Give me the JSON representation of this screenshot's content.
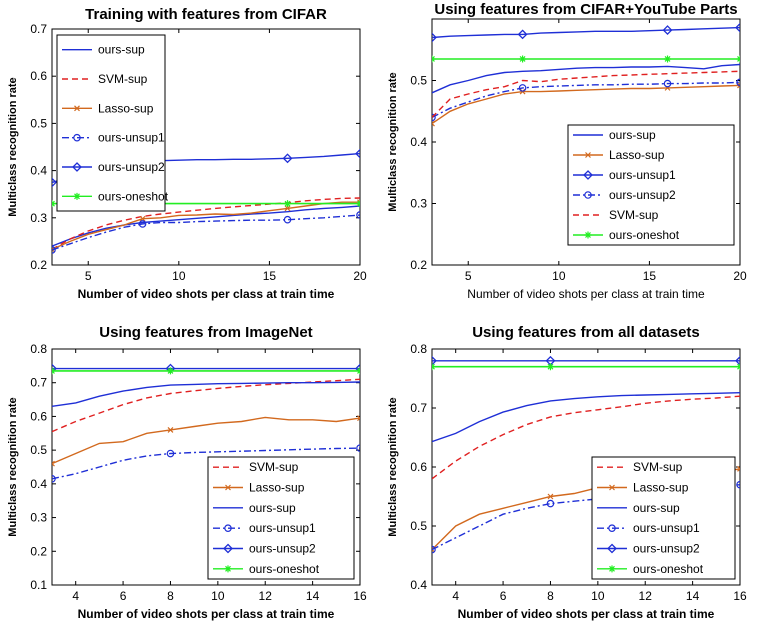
{
  "colors": {
    "blue": "#1f2fd6",
    "red": "#e02020",
    "orange": "#d2691e",
    "green": "#22ee22"
  },
  "chart_data": [
    {
      "type": "line",
      "title": "Training with features from CIFAR",
      "xlabel": "Number of video shots per class at train time",
      "ylabel": "Multiclass recognition rate",
      "xlim": [
        3,
        20
      ],
      "ylim": [
        0.2,
        0.7
      ],
      "xticks": [
        "5",
        "10",
        "15",
        "20"
      ],
      "yticks": [
        "0.2",
        "0.3",
        "0.4",
        "0.5",
        "0.6",
        "0.7"
      ],
      "legend_position": "top-left",
      "series": [
        {
          "name": "ours-sup",
          "color": "#1f2fd6",
          "dash": "solid",
          "marker": "none",
          "x": [
            3,
            4,
            5,
            6,
            7,
            8,
            9,
            10,
            11,
            12,
            13,
            14,
            15,
            16,
            17,
            18,
            19,
            20
          ],
          "y": [
            0.24,
            0.255,
            0.268,
            0.278,
            0.285,
            0.29,
            0.293,
            0.296,
            0.299,
            0.302,
            0.305,
            0.308,
            0.31,
            0.313,
            0.317,
            0.32,
            0.322,
            0.325
          ]
        },
        {
          "name": "SVM-sup",
          "color": "#e02020",
          "dash": "dashed",
          "marker": "none",
          "x": [
            3,
            4,
            5,
            6,
            7,
            8,
            9,
            10,
            11,
            12,
            13,
            14,
            15,
            16,
            17,
            18,
            19,
            20
          ],
          "y": [
            0.233,
            0.255,
            0.272,
            0.285,
            0.295,
            0.303,
            0.308,
            0.312,
            0.316,
            0.32,
            0.323,
            0.326,
            0.329,
            0.332,
            0.336,
            0.339,
            0.341,
            0.342
          ]
        },
        {
          "name": "Lasso-sup",
          "color": "#d2691e",
          "dash": "solid",
          "marker": "x",
          "x": [
            3,
            4,
            5,
            6,
            7,
            8,
            9,
            10,
            11,
            12,
            13,
            14,
            15,
            16,
            17,
            18,
            19,
            20
          ],
          "y": [
            0.233,
            0.25,
            0.265,
            0.275,
            0.285,
            0.298,
            0.3,
            0.305,
            0.306,
            0.308,
            0.307,
            0.31,
            0.315,
            0.32,
            0.325,
            0.33,
            0.333,
            0.333
          ]
        },
        {
          "name": "ours-unsup1",
          "color": "#1f2fd6",
          "dash": "dashdot",
          "marker": "circle",
          "x": [
            3,
            4,
            5,
            6,
            7,
            8,
            9,
            10,
            11,
            12,
            13,
            14,
            15,
            16,
            17,
            18,
            19,
            20
          ],
          "y": [
            0.232,
            0.245,
            0.258,
            0.27,
            0.28,
            0.287,
            0.29,
            0.29,
            0.292,
            0.293,
            0.294,
            0.295,
            0.295,
            0.296,
            0.298,
            0.3,
            0.303,
            0.306
          ]
        },
        {
          "name": "ours-unsup2",
          "color": "#1f2fd6",
          "dash": "solid",
          "marker": "diamond",
          "x": [
            3,
            4,
            5,
            6,
            7,
            8,
            9,
            10,
            11,
            12,
            13,
            14,
            15,
            16,
            17,
            18,
            19,
            20
          ],
          "y": [
            0.375,
            0.385,
            0.395,
            0.405,
            0.413,
            0.42,
            0.421,
            0.422,
            0.423,
            0.423,
            0.424,
            0.424,
            0.425,
            0.426,
            0.428,
            0.43,
            0.433,
            0.436
          ]
        },
        {
          "name": "ours-oneshot",
          "color": "#22ee22",
          "dash": "solid",
          "marker": "star",
          "x": [
            3,
            8,
            16,
            20
          ],
          "y": [
            0.33,
            0.33,
            0.33,
            0.33
          ]
        }
      ],
      "marker_x": [
        3,
        8,
        16,
        20
      ]
    },
    {
      "type": "line",
      "title": "Using features from CIFAR+YouTube Parts",
      "xlabel": "Number of video shots per class at train time",
      "ylabel": "Multiclass recognition rate",
      "xlim": [
        3,
        20
      ],
      "ylim": [
        0.2,
        0.6
      ],
      "xticks": [
        "5",
        "10",
        "15",
        "20"
      ],
      "yticks": [
        "0.2",
        "0.3",
        "0.4",
        "0.5"
      ],
      "legend_position": "bottom-right",
      "series": [
        {
          "name": "ours-sup",
          "color": "#1f2fd6",
          "dash": "solid",
          "marker": "none",
          "x": [
            3,
            4,
            5,
            6,
            7,
            8,
            9,
            10,
            11,
            12,
            13,
            14,
            15,
            16,
            17,
            18,
            19,
            20
          ],
          "y": [
            0.48,
            0.493,
            0.5,
            0.508,
            0.513,
            0.515,
            0.516,
            0.518,
            0.52,
            0.521,
            0.521,
            0.522,
            0.522,
            0.523,
            0.521,
            0.519,
            0.524,
            0.526
          ]
        },
        {
          "name": "Lasso-sup",
          "color": "#d2691e",
          "dash": "solid",
          "marker": "x",
          "x": [
            3,
            4,
            5,
            6,
            7,
            8,
            9,
            10,
            11,
            12,
            13,
            14,
            15,
            16,
            17,
            18,
            19,
            20
          ],
          "y": [
            0.43,
            0.45,
            0.462,
            0.47,
            0.478,
            0.482,
            0.482,
            0.483,
            0.484,
            0.485,
            0.486,
            0.487,
            0.487,
            0.488,
            0.489,
            0.49,
            0.491,
            0.492
          ]
        },
        {
          "name": "ours-unsup1",
          "color": "#1f2fd6",
          "dash": "solid",
          "marker": "diamond",
          "x": [
            3,
            4,
            5,
            6,
            7,
            8,
            9,
            10,
            11,
            12,
            13,
            14,
            15,
            16,
            17,
            18,
            19,
            20
          ],
          "y": [
            0.57,
            0.572,
            0.573,
            0.574,
            0.575,
            0.575,
            0.577,
            0.578,
            0.579,
            0.58,
            0.58,
            0.58,
            0.581,
            0.582,
            0.583,
            0.584,
            0.585,
            0.586
          ]
        },
        {
          "name": "ours-unsup2",
          "color": "#1f2fd6",
          "dash": "dashdot",
          "marker": "circle",
          "x": [
            3,
            4,
            5,
            6,
            7,
            8,
            9,
            10,
            11,
            12,
            13,
            14,
            15,
            16,
            17,
            18,
            19,
            20
          ],
          "y": [
            0.44,
            0.455,
            0.465,
            0.475,
            0.482,
            0.488,
            0.49,
            0.491,
            0.492,
            0.493,
            0.493,
            0.494,
            0.494,
            0.495,
            0.495,
            0.496,
            0.496,
            0.497
          ]
        },
        {
          "name": "SVM-sup",
          "color": "#e02020",
          "dash": "dashed",
          "marker": "none",
          "x": [
            3,
            4,
            5,
            6,
            7,
            8,
            9,
            10,
            11,
            12,
            13,
            14,
            15,
            16,
            17,
            18,
            19,
            20
          ],
          "y": [
            0.44,
            0.47,
            0.478,
            0.485,
            0.49,
            0.5,
            0.498,
            0.502,
            0.504,
            0.506,
            0.508,
            0.509,
            0.51,
            0.511,
            0.512,
            0.513,
            0.514,
            0.515
          ]
        },
        {
          "name": "ours-oneshot",
          "color": "#22ee22",
          "dash": "solid",
          "marker": "star",
          "x": [
            3,
            8,
            16,
            20
          ],
          "y": [
            0.535,
            0.535,
            0.535,
            0.535
          ]
        }
      ],
      "marker_x": [
        3,
        8,
        16,
        20
      ]
    },
    {
      "type": "line",
      "title": "Using features from ImageNet",
      "xlabel": "Number of video shots per class at train time",
      "ylabel": "Multiclass recognition rate",
      "xlim": [
        3,
        16
      ],
      "ylim": [
        0.1,
        0.8
      ],
      "xticks": [
        "4",
        "6",
        "8",
        "10",
        "12",
        "14",
        "16"
      ],
      "yticks": [
        "0.1",
        "0.2",
        "0.3",
        "0.4",
        "0.5",
        "0.6",
        "0.7",
        "0.8"
      ],
      "legend_position": "bottom-right",
      "series": [
        {
          "name": "SVM-sup",
          "color": "#e02020",
          "dash": "dashed",
          "marker": "none",
          "x": [
            3,
            4,
            5,
            6,
            7,
            8,
            9,
            10,
            11,
            12,
            13,
            14,
            15,
            16
          ],
          "y": [
            0.555,
            0.585,
            0.61,
            0.635,
            0.655,
            0.668,
            0.676,
            0.683,
            0.689,
            0.694,
            0.698,
            0.702,
            0.706,
            0.71
          ]
        },
        {
          "name": "Lasso-sup",
          "color": "#d2691e",
          "dash": "solid",
          "marker": "x",
          "x": [
            3,
            4,
            5,
            6,
            7,
            8,
            9,
            10,
            11,
            12,
            13,
            14,
            15,
            16
          ],
          "y": [
            0.46,
            0.49,
            0.52,
            0.525,
            0.55,
            0.56,
            0.57,
            0.58,
            0.585,
            0.597,
            0.59,
            0.59,
            0.585,
            0.595
          ]
        },
        {
          "name": "ours-sup",
          "color": "#1f2fd6",
          "dash": "solid",
          "marker": "none",
          "x": [
            3,
            4,
            5,
            6,
            7,
            8,
            9,
            10,
            11,
            12,
            13,
            14,
            15,
            16
          ],
          "y": [
            0.63,
            0.64,
            0.66,
            0.675,
            0.686,
            0.693,
            0.695,
            0.697,
            0.698,
            0.699,
            0.7,
            0.7,
            0.701,
            0.702
          ]
        },
        {
          "name": "ours-unsup1",
          "color": "#1f2fd6",
          "dash": "dashdot",
          "marker": "circle",
          "x": [
            3,
            4,
            5,
            6,
            7,
            8,
            9,
            10,
            11,
            12,
            13,
            14,
            15,
            16
          ],
          "y": [
            0.415,
            0.43,
            0.45,
            0.47,
            0.483,
            0.49,
            0.493,
            0.495,
            0.497,
            0.499,
            0.501,
            0.503,
            0.505,
            0.506
          ]
        },
        {
          "name": "ours-unsup2",
          "color": "#1f2fd6",
          "dash": "solid",
          "marker": "diamond",
          "x": [
            3,
            8,
            16
          ],
          "y": [
            0.742,
            0.742,
            0.742
          ]
        },
        {
          "name": "ours-oneshot",
          "color": "#22ee22",
          "dash": "solid",
          "marker": "star",
          "x": [
            3,
            8,
            16
          ],
          "y": [
            0.735,
            0.735,
            0.735
          ]
        }
      ],
      "marker_x": [
        3,
        8,
        16
      ]
    },
    {
      "type": "line",
      "title": "Using features from all datasets",
      "xlabel": "Number of video shots per class at train time",
      "ylabel": "Multiclass recognition rate",
      "xlim": [
        3,
        16
      ],
      "ylim": [
        0.4,
        0.8
      ],
      "xticks": [
        "4",
        "6",
        "8",
        "10",
        "12",
        "14",
        "16"
      ],
      "yticks": [
        "0.4",
        "0.5",
        "0.6",
        "0.7",
        "0.8"
      ],
      "legend_position": "bottom-right",
      "series": [
        {
          "name": "SVM-sup",
          "color": "#e02020",
          "dash": "dashed",
          "marker": "none",
          "x": [
            3,
            4,
            5,
            6,
            7,
            8,
            9,
            10,
            11,
            12,
            13,
            14,
            15,
            16
          ],
          "y": [
            0.58,
            0.61,
            0.635,
            0.655,
            0.672,
            0.685,
            0.692,
            0.697,
            0.702,
            0.708,
            0.712,
            0.715,
            0.717,
            0.72
          ]
        },
        {
          "name": "Lasso-sup",
          "color": "#d2691e",
          "dash": "solid",
          "marker": "x",
          "x": [
            3,
            4,
            5,
            6,
            7,
            8,
            9,
            10,
            11,
            12,
            13,
            14,
            15,
            16
          ],
          "y": [
            0.46,
            0.5,
            0.52,
            0.53,
            0.54,
            0.55,
            0.555,
            0.565,
            0.575,
            0.58,
            0.585,
            0.585,
            0.59,
            0.597
          ]
        },
        {
          "name": "ours-sup",
          "color": "#1f2fd6",
          "dash": "solid",
          "marker": "none",
          "x": [
            3,
            4,
            5,
            6,
            7,
            8,
            9,
            10,
            11,
            12,
            13,
            14,
            15,
            16
          ],
          "y": [
            0.643,
            0.657,
            0.677,
            0.693,
            0.704,
            0.712,
            0.716,
            0.719,
            0.721,
            0.722,
            0.723,
            0.724,
            0.725,
            0.726
          ]
        },
        {
          "name": "ours-unsup1",
          "color": "#1f2fd6",
          "dash": "dashdot",
          "marker": "circle",
          "x": [
            3,
            4,
            5,
            6,
            7,
            8,
            9,
            10,
            11,
            12,
            13,
            14,
            15,
            16
          ],
          "y": [
            0.46,
            0.48,
            0.5,
            0.52,
            0.53,
            0.538,
            0.542,
            0.546,
            0.55,
            0.554,
            0.558,
            0.562,
            0.566,
            0.57
          ]
        },
        {
          "name": "ours-unsup2",
          "color": "#1f2fd6",
          "dash": "solid",
          "marker": "diamond",
          "x": [
            3,
            8,
            16
          ],
          "y": [
            0.78,
            0.78,
            0.78
          ]
        },
        {
          "name": "ours-oneshot",
          "color": "#22ee22",
          "dash": "solid",
          "marker": "star",
          "x": [
            3,
            8,
            16
          ],
          "y": [
            0.77,
            0.77,
            0.77
          ]
        }
      ],
      "marker_x": [
        3,
        8,
        16
      ]
    }
  ]
}
